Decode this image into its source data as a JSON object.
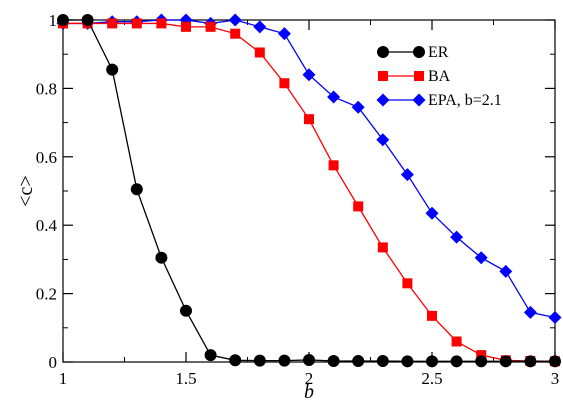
{
  "chart_data": {
    "type": "line",
    "title": "",
    "xlabel": "b",
    "ylabel": "<c>",
    "xlim": [
      1,
      3
    ],
    "ylim": [
      0,
      1
    ],
    "x_ticks": [
      1,
      1.5,
      2,
      2.5,
      3
    ],
    "x_tick_labels": [
      "1",
      "1.5",
      "2",
      "2.5",
      "3"
    ],
    "y_ticks": [
      0,
      0.2,
      0.4,
      0.6,
      0.8,
      1
    ],
    "y_tick_labels": [
      "0",
      "0.2",
      "0.4",
      "0.6",
      "0.8",
      "1"
    ],
    "grid": false,
    "legend_position": "top-right",
    "x": [
      1,
      1.1,
      1.2,
      1.3,
      1.4,
      1.5,
      1.6,
      1.7,
      1.8,
      1.9,
      2,
      2.1,
      2.2,
      2.3,
      2.4,
      2.5,
      2.6,
      2.7,
      2.8,
      2.9,
      3
    ],
    "series": [
      {
        "name": "ER",
        "color": "#000000",
        "marker": "circle",
        "values": [
          1.0,
          1.0,
          0.855,
          0.505,
          0.305,
          0.15,
          0.02,
          0.005,
          0.004,
          0.004,
          0.006,
          0.003,
          0.003,
          0.003,
          0.002,
          0.002,
          0.002,
          0.002,
          0.002,
          0.002,
          0.002
        ]
      },
      {
        "name": "BA",
        "color": "#ff0000",
        "marker": "square",
        "values": [
          0.99,
          0.99,
          0.99,
          0.99,
          0.99,
          0.98,
          0.98,
          0.96,
          0.905,
          0.815,
          0.71,
          0.575,
          0.455,
          0.335,
          0.23,
          0.135,
          0.06,
          0.02,
          0.005,
          0.003,
          0.002
        ]
      },
      {
        "name": "EPA, b=2.1",
        "color": "#0000ff",
        "marker": "diamond",
        "values": [
          0.99,
          0.99,
          0.995,
          0.995,
          1.0,
          1.0,
          0.99,
          1.0,
          0.98,
          0.96,
          0.84,
          0.775,
          0.745,
          0.65,
          0.548,
          0.435,
          0.365,
          0.305,
          0.265,
          0.145,
          0.13
        ]
      }
    ]
  }
}
